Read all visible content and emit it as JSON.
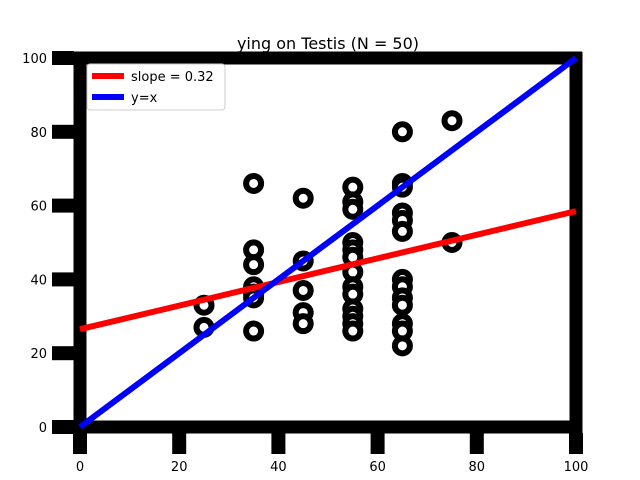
{
  "chart_data": {
    "type": "scatter",
    "title": "ying on Testis (N = 50)",
    "xlabel": "",
    "ylabel": "",
    "xlim": [
      0,
      100
    ],
    "ylim": [
      0,
      100
    ],
    "xticks": [
      0,
      20,
      40,
      60,
      80,
      100
    ],
    "yticks": [
      0,
      20,
      40,
      60,
      80,
      100
    ],
    "grid": false,
    "legend_position": "top-left",
    "points": [
      [
        25,
        33
      ],
      [
        25,
        27
      ],
      [
        35,
        66
      ],
      [
        35,
        48
      ],
      [
        35,
        44
      ],
      [
        35,
        38
      ],
      [
        35,
        36
      ],
      [
        35,
        35
      ],
      [
        35,
        26
      ],
      [
        45,
        62
      ],
      [
        45,
        45
      ],
      [
        45,
        37
      ],
      [
        45,
        31
      ],
      [
        45,
        28
      ],
      [
        55,
        65
      ],
      [
        55,
        61
      ],
      [
        55,
        59
      ],
      [
        55,
        50
      ],
      [
        55,
        48
      ],
      [
        55,
        46
      ],
      [
        55,
        42
      ],
      [
        55,
        38
      ],
      [
        55,
        36
      ],
      [
        55,
        32
      ],
      [
        55,
        30
      ],
      [
        55,
        28
      ],
      [
        55,
        26
      ],
      [
        65,
        80
      ],
      [
        65,
        66
      ],
      [
        65,
        65
      ],
      [
        65,
        58
      ],
      [
        65,
        56
      ],
      [
        65,
        53
      ],
      [
        65,
        40
      ],
      [
        65,
        38
      ],
      [
        65,
        35
      ],
      [
        65,
        33
      ],
      [
        65,
        28
      ],
      [
        65,
        26
      ],
      [
        65,
        22
      ],
      [
        75,
        83
      ],
      [
        75,
        50
      ]
    ],
    "point_color": "#000000",
    "lines": [
      {
        "name": "slope = 0.32",
        "color": "#ff0000",
        "x": [
          0,
          100
        ],
        "y": [
          26.5,
          58.5
        ]
      },
      {
        "name": "y=x",
        "color": "#0000ff",
        "x": [
          0,
          100
        ],
        "y": [
          0,
          100
        ]
      }
    ]
  }
}
